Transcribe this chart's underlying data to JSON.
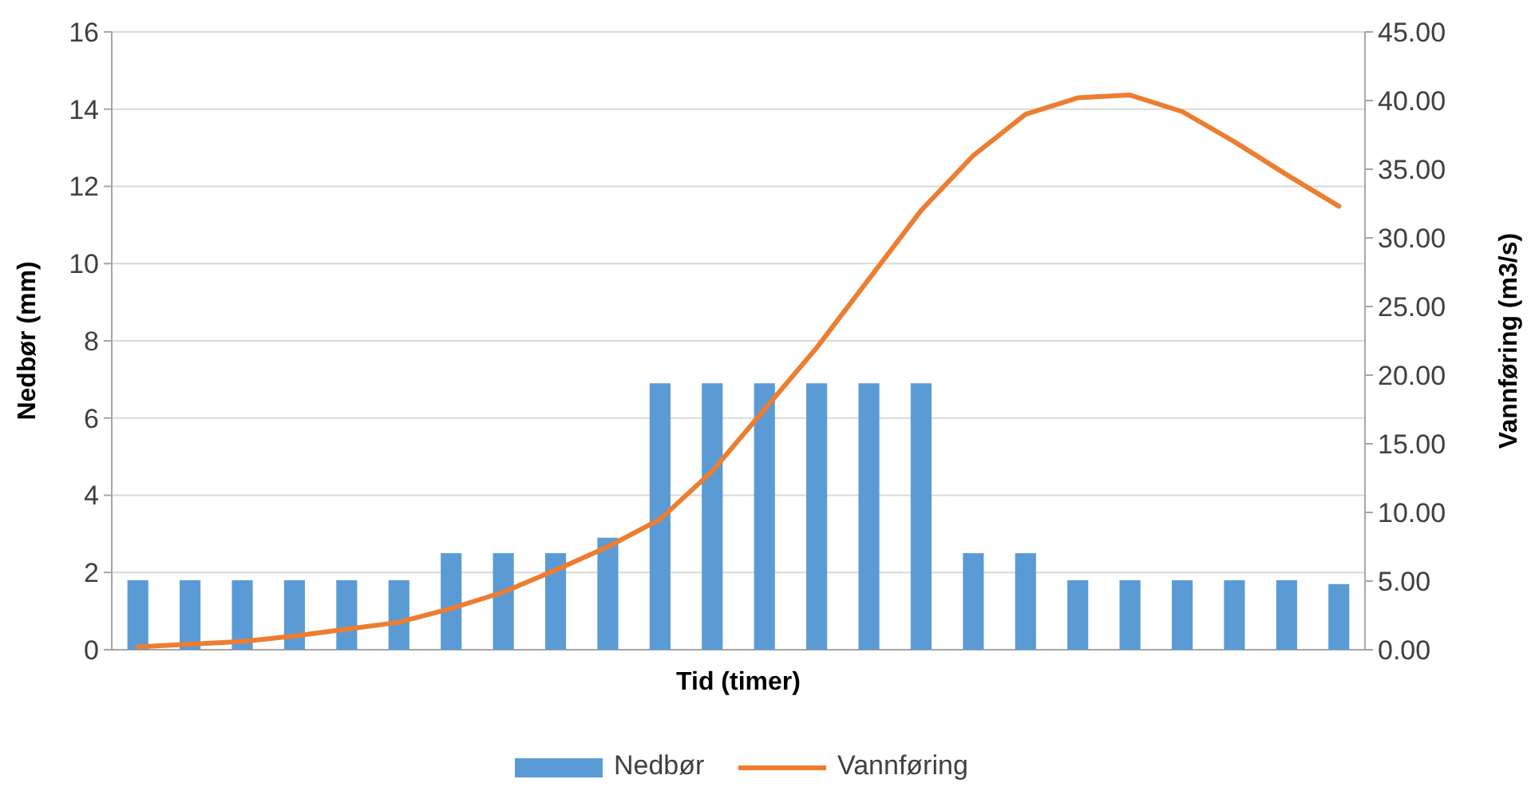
{
  "chart_data": {
    "type": "bar",
    "xlabel": "Tid (timer)",
    "ylabel": "Nedbør (mm)",
    "y2label": "Vannføring (m3/s)",
    "categories": [
      null,
      null,
      null,
      null,
      null,
      null,
      null,
      null,
      null,
      null,
      null,
      null,
      null,
      null,
      null,
      null,
      null,
      null,
      null,
      null,
      null,
      null,
      null,
      null
    ],
    "series": [
      {
        "name": "Nedbør",
        "color": "#5b9bd5",
        "values": [
          1.8,
          1.8,
          1.8,
          1.8,
          1.8,
          1.8,
          2.5,
          2.5,
          2.5,
          2.9,
          6.9,
          6.9,
          6.9,
          6.9,
          6.9,
          6.9,
          2.5,
          2.5,
          1.8,
          1.8,
          1.8,
          1.8,
          1.8,
          1.7
        ]
      },
      {
        "name": "Vannføring",
        "type": "line",
        "axis": "y2",
        "color": "#ed7d31",
        "values": [
          0.2,
          0.4,
          0.6,
          1.0,
          1.5,
          2.0,
          3.0,
          4.2,
          5.8,
          7.5,
          9.5,
          13.0,
          17.5,
          22.0,
          27.0,
          32.0,
          36.0,
          39.0,
          40.2,
          40.4,
          39.2,
          37.0,
          34.6,
          32.3
        ]
      }
    ],
    "ylim": [
      0,
      16
    ],
    "yticks": [
      0,
      2,
      4,
      6,
      8,
      10,
      12,
      14,
      16
    ],
    "y2lim": [
      0,
      45
    ],
    "y2ticks": [
      {
        "value": 0,
        "label": "0.00"
      },
      {
        "value": 5,
        "label": "5.00"
      },
      {
        "value": 10,
        "label": "10.00"
      },
      {
        "value": 15,
        "label": "15.00"
      },
      {
        "value": 20,
        "label": "20.00"
      },
      {
        "value": 25,
        "label": "25.00"
      },
      {
        "value": 30,
        "label": "30.00"
      },
      {
        "value": 35,
        "label": "35.00"
      },
      {
        "value": 40,
        "label": "40.00"
      },
      {
        "value": 45,
        "label": "45.00"
      }
    ],
    "grid": "y",
    "legend": "bottom",
    "marker": "none",
    "line_style": "solid"
  }
}
